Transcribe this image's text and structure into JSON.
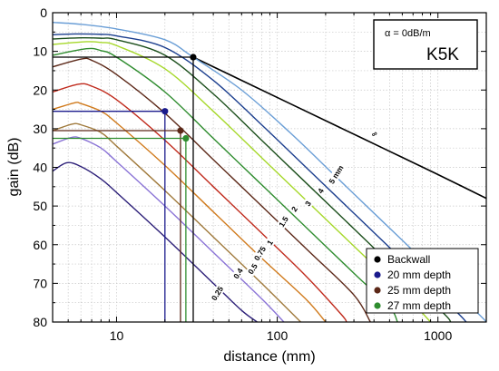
{
  "chart_data": {
    "type": "line",
    "xlabel": "distance (mm)",
    "ylabel": "gain (dB)",
    "xscale": "log",
    "xlim": [
      4,
      2000
    ],
    "ylim": [
      80,
      0
    ],
    "y_inverted": true,
    "grid": true,
    "x_ticks": [
      10,
      100,
      1000
    ],
    "x_tick_labels": [
      "10",
      "100",
      "1000"
    ],
    "y_ticks": [
      0,
      10,
      20,
      30,
      40,
      50,
      60,
      70,
      80
    ],
    "y_tick_labels": [
      "0",
      "10",
      "20",
      "30",
      "40",
      "50",
      "60",
      "70",
      "80"
    ],
    "annotation_box": {
      "alpha_label": "α = 0dB/m",
      "probe_label": "K5K"
    },
    "curves": [
      {
        "label": "0.25",
        "color": "#2c1f78",
        "peak": [
          4.9,
          38.8
        ],
        "points": [
          [
            4,
            41
          ],
          [
            4.9,
            38.8
          ],
          [
            6,
            39.8
          ],
          [
            8,
            43
          ],
          [
            10,
            46.5
          ],
          [
            20,
            58
          ],
          [
            40,
            70
          ],
          [
            60,
            77
          ],
          [
            75,
            80
          ]
        ]
      },
      {
        "label": "0.4",
        "color": "#8a73d6",
        "peak": [
          5.2,
          32.3
        ],
        "points": [
          [
            4,
            34
          ],
          [
            5.2,
            32.3
          ],
          [
            6,
            32.5
          ],
          [
            8,
            35
          ],
          [
            10,
            38.5
          ],
          [
            20,
            50
          ],
          [
            40,
            62
          ],
          [
            80,
            74
          ],
          [
            110,
            80
          ]
        ]
      },
      {
        "label": "0.5",
        "color": "#a07a3c",
        "peak": [
          5.3,
          28.8
        ],
        "points": [
          [
            4,
            30.5
          ],
          [
            5.3,
            28.8
          ],
          [
            6,
            29
          ],
          [
            8,
            31
          ],
          [
            10,
            34.5
          ],
          [
            20,
            46
          ],
          [
            40,
            58
          ],
          [
            80,
            70
          ],
          [
            140,
            80
          ]
        ]
      },
      {
        "label": "0.75",
        "color": "#d07a1c",
        "peak": [
          5.5,
          23.3
        ],
        "points": [
          [
            4,
            25
          ],
          [
            5.5,
            23.3
          ],
          [
            6,
            23.5
          ],
          [
            8,
            25.5
          ],
          [
            10,
            28.5
          ],
          [
            20,
            39.5
          ],
          [
            40,
            51.5
          ],
          [
            80,
            63.5
          ],
          [
            150,
            74
          ],
          [
            200,
            80
          ]
        ]
      },
      {
        "label": "1",
        "color": "#c02a1c",
        "peak": [
          5.8,
          18.5
        ],
        "points": [
          [
            4,
            20.5
          ],
          [
            5.8,
            18.5
          ],
          [
            7,
            19
          ],
          [
            10,
            22.5
          ],
          [
            20,
            33
          ],
          [
            40,
            45
          ],
          [
            80,
            57
          ],
          [
            150,
            68
          ],
          [
            250,
            78
          ],
          [
            270,
            80
          ]
        ]
      },
      {
        "label": "1.5",
        "color": "#5c2818",
        "peak": [
          6.0,
          12
        ],
        "points": [
          [
            4,
            14
          ],
          [
            6,
            12
          ],
          [
            7,
            12.3
          ],
          [
            10,
            16
          ],
          [
            20,
            26
          ],
          [
            40,
            38
          ],
          [
            80,
            50
          ],
          [
            160,
            62
          ],
          [
            300,
            73
          ],
          [
            380,
            80
          ]
        ]
      },
      {
        "label": "2",
        "color": "#2e8c2e",
        "peak": [
          6.5,
          9.3
        ],
        "points": [
          [
            4,
            11
          ],
          [
            6.5,
            9.3
          ],
          [
            8,
            9.8
          ],
          [
            10,
            11.5
          ],
          [
            20,
            20.5
          ],
          [
            40,
            32.5
          ],
          [
            80,
            44.5
          ],
          [
            160,
            56.5
          ],
          [
            320,
            68.5
          ],
          [
            500,
            76
          ],
          [
            560,
            80
          ]
        ]
      },
      {
        "label": "3",
        "color": "#a6d82a",
        "peak": [
          6.5,
          7.5
        ],
        "points": [
          [
            4,
            8.2
          ],
          [
            6.5,
            7.5
          ],
          [
            8,
            7.7
          ],
          [
            10,
            8.5
          ],
          [
            20,
            14.5
          ],
          [
            40,
            25.5
          ],
          [
            80,
            37.5
          ],
          [
            160,
            49.5
          ],
          [
            320,
            61.5
          ],
          [
            640,
            73.5
          ],
          [
            900,
            80
          ]
        ]
      },
      {
        "label": "4",
        "color": "#1b4e1b",
        "peak": [
          6.0,
          6.5
        ],
        "points": [
          [
            4,
            6.8
          ],
          [
            6,
            6.5
          ],
          [
            8,
            6.6
          ],
          [
            10,
            7
          ],
          [
            20,
            11
          ],
          [
            40,
            21
          ],
          [
            80,
            33
          ],
          [
            160,
            45
          ],
          [
            320,
            57
          ],
          [
            640,
            69
          ],
          [
            1100,
            78
          ],
          [
            1200,
            80
          ]
        ]
      },
      {
        "label": "5 mm",
        "color": "#1b3e8e",
        "peak": [
          5.5,
          5.5
        ],
        "points": [
          [
            4,
            5.7
          ],
          [
            5.5,
            5.5
          ],
          [
            8,
            5.6
          ],
          [
            10,
            6
          ],
          [
            20,
            9
          ],
          [
            40,
            17.5
          ],
          [
            80,
            29
          ],
          [
            160,
            41
          ],
          [
            320,
            53
          ],
          [
            640,
            65
          ],
          [
            1280,
            77
          ],
          [
            1500,
            80
          ]
        ]
      },
      {
        "label": "∞",
        "color": "#000000",
        "type": "backwall",
        "points": [
          [
            30,
            11.5
          ],
          [
            60,
            17.5
          ],
          [
            120,
            23.5
          ],
          [
            240,
            29.5
          ],
          [
            480,
            35.5
          ],
          [
            960,
            41.5
          ],
          [
            2000,
            48
          ]
        ]
      },
      {
        "label": "",
        "color": "#6a9ed6",
        "type": "near-field",
        "points": [
          [
            4,
            2.5
          ],
          [
            6,
            3
          ],
          [
            10,
            4.2
          ],
          [
            20,
            7
          ],
          [
            30,
            11.5
          ],
          [
            60,
            20
          ],
          [
            120,
            31
          ],
          [
            240,
            43
          ],
          [
            480,
            55
          ],
          [
            960,
            67
          ],
          [
            1800,
            78
          ],
          [
            2000,
            80
          ]
        ]
      }
    ],
    "markers": [
      {
        "name": "Backwall",
        "color": "#000000",
        "x": 30,
        "y": 11.5
      },
      {
        "name": "20 mm depth",
        "color": "#1a1a8c",
        "x": 20,
        "y": 25.5
      },
      {
        "name": "25 mm depth",
        "color": "#5c2818",
        "x": 25,
        "y": 30.5
      },
      {
        "name": "27 mm depth",
        "color": "#2e8c2e",
        "x": 27,
        "y": 32.5
      }
    ],
    "legend": {
      "position": "bottom-right",
      "entries": [
        {
          "name": "Backwall",
          "color": "#000000"
        },
        {
          "name": "20 mm depth",
          "color": "#1a1a8c"
        },
        {
          "name": "25 mm depth",
          "color": "#5c2818"
        },
        {
          "name": "27 mm depth",
          "color": "#2e8c2e"
        }
      ]
    }
  }
}
